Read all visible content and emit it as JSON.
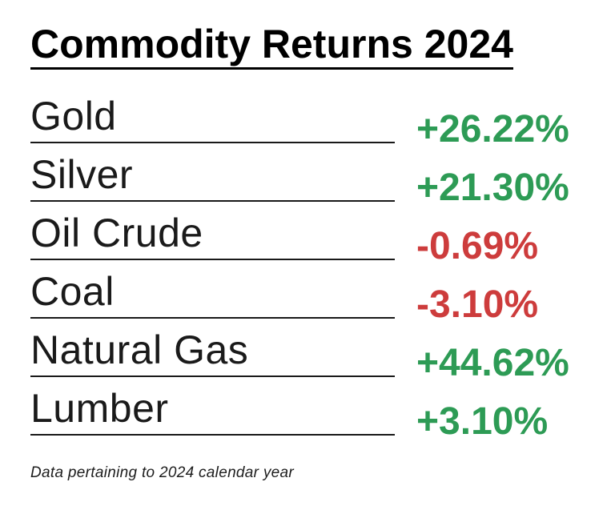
{
  "title": "Commodity Returns 2024",
  "rows": [
    {
      "label": "Gold",
      "value": "+26.22%",
      "direction": "positive"
    },
    {
      "label": "Silver",
      "value": "+21.30%",
      "direction": "positive"
    },
    {
      "label": "Oil Crude",
      "value": "-0.69%",
      "direction": "negative"
    },
    {
      "label": "Coal",
      "value": "-3.10%",
      "direction": "negative"
    },
    {
      "label": "Natural Gas",
      "value": "+44.62%",
      "direction": "positive"
    },
    {
      "label": "Lumber",
      "value": "+3.10%",
      "direction": "positive"
    }
  ],
  "footnote": "Data pertaining to 2024 calendar year",
  "colors": {
    "positive": "#2d9b55",
    "negative": "#cd3c3c",
    "text": "#1a1a1a",
    "title": "#000000",
    "background": "#ffffff"
  },
  "chart_data": {
    "type": "table",
    "title": "Commodity Returns 2024",
    "categories": [
      "Gold",
      "Silver",
      "Oil Crude",
      "Coal",
      "Natural Gas",
      "Lumber"
    ],
    "values": [
      26.22,
      21.3,
      -0.69,
      -3.1,
      44.62,
      3.1
    ],
    "value_labels": [
      "+26.22%",
      "+21.30%",
      "-0.69%",
      "-3.10%",
      "+44.62%",
      "+3.10%"
    ],
    "unit": "%",
    "legend": "none",
    "footnote": "Data pertaining to 2024 calendar year",
    "positive_color": "#2d9b55",
    "negative_color": "#cd3c3c"
  }
}
